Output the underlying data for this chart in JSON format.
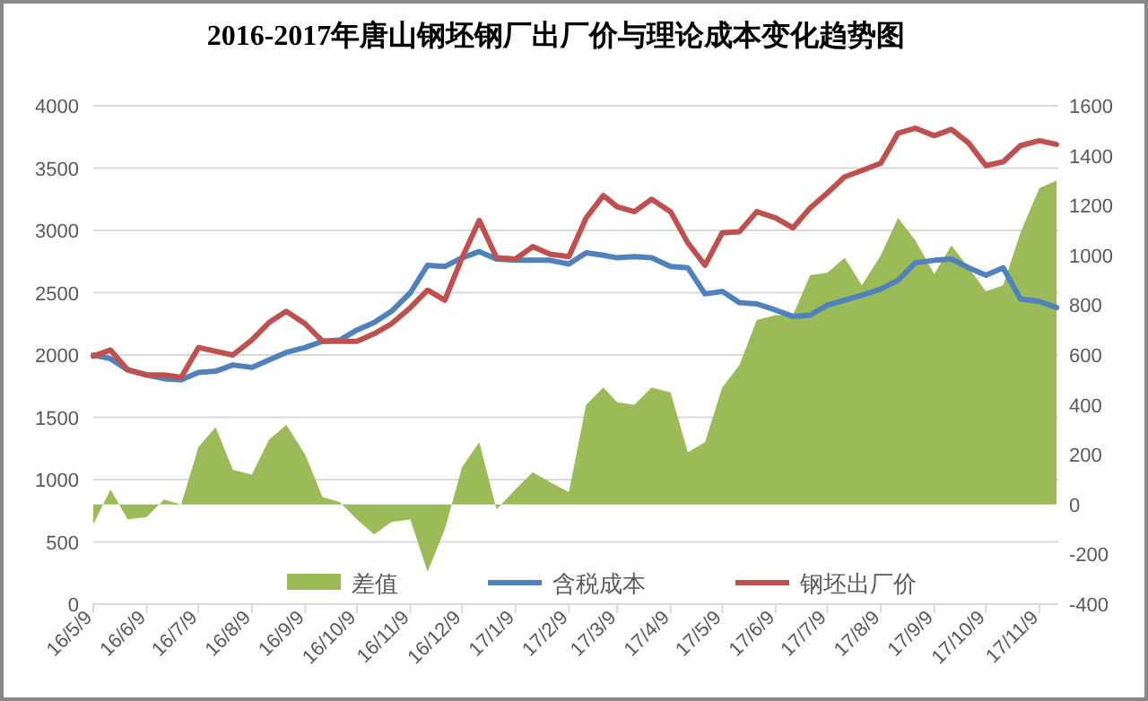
{
  "chart_data": {
    "type": "line",
    "title": "2016-2017年唐山钢坯钢厂出厂价与理论成本变化趋势图",
    "x": [
      "2016-05-09",
      "2016-05-19",
      "2016-05-29",
      "2016-06-09",
      "2016-06-19",
      "2016-06-29",
      "2016-07-09",
      "2016-07-19",
      "2016-07-29",
      "2016-08-09",
      "2016-08-19",
      "2016-08-29",
      "2016-09-09",
      "2016-09-19",
      "2016-09-29",
      "2016-10-09",
      "2016-10-19",
      "2016-10-29",
      "2016-11-09",
      "2016-11-19",
      "2016-11-29",
      "2016-12-09",
      "2016-12-19",
      "2016-12-29",
      "2017-01-09",
      "2017-01-19",
      "2017-01-29",
      "2017-02-09",
      "2017-02-19",
      "2017-03-01",
      "2017-03-09",
      "2017-03-19",
      "2017-03-29",
      "2017-04-09",
      "2017-04-19",
      "2017-04-29",
      "2017-05-09",
      "2017-05-19",
      "2017-05-29",
      "2017-06-09",
      "2017-06-19",
      "2017-06-29",
      "2017-07-09",
      "2017-07-19",
      "2017-07-29",
      "2017-08-09",
      "2017-08-19",
      "2017-08-29",
      "2017-09-09",
      "2017-09-19",
      "2017-09-29",
      "2017-10-09",
      "2017-10-19",
      "2017-10-29",
      "2017-11-09",
      "2017-11-19"
    ],
    "series": [
      {
        "name": "差值",
        "type": "area",
        "axis": "y2",
        "color": "#9bbb59",
        "values": [
          -80,
          60,
          -60,
          -50,
          20,
          0,
          230,
          310,
          140,
          120,
          260,
          320,
          200,
          30,
          10,
          -60,
          -120,
          -70,
          -60,
          -270,
          -100,
          150,
          250,
          -20,
          60,
          130,
          90,
          50,
          400,
          470,
          410,
          400,
          470,
          450,
          210,
          250,
          470,
          560,
          740,
          760,
          760,
          920,
          930,
          990,
          880,
          1000,
          1150,
          1060,
          925,
          1040,
          950,
          855,
          880,
          1090,
          1270,
          1300
        ]
      },
      {
        "name": "含税成本",
        "type": "line",
        "color": "#4f81bd",
        "values": [
          2000,
          1970,
          1880,
          1840,
          1810,
          1800,
          1860,
          1870,
          1920,
          1900,
          1960,
          2020,
          2060,
          2110,
          2120,
          2200,
          2260,
          2350,
          2500,
          2720,
          2710,
          2780,
          2830,
          2770,
          2760,
          2760,
          2760,
          2730,
          2820,
          2800,
          2780,
          2790,
          2780,
          2710,
          2700,
          2490,
          2510,
          2420,
          2410,
          2360,
          2310,
          2320,
          2400,
          2440,
          2480,
          2530,
          2600,
          2740,
          2760,
          2770,
          2700,
          2640,
          2700,
          2450,
          2430,
          2380
        ]
      },
      {
        "name": "钢坯出厂价",
        "type": "line",
        "color": "#c0504d",
        "values": [
          1990,
          2040,
          1880,
          1840,
          1840,
          1820,
          2060,
          2030,
          2000,
          2120,
          2260,
          2350,
          2250,
          2110,
          2110,
          2110,
          2170,
          2250,
          2380,
          2520,
          2440,
          2780,
          3080,
          2780,
          2770,
          2870,
          2810,
          2790,
          3100,
          3280,
          3190,
          3150,
          3250,
          3150,
          2900,
          2720,
          2980,
          2990,
          3150,
          3100,
          3020,
          3180,
          3300,
          3430,
          3480,
          3540,
          3780,
          3820,
          3760,
          3810,
          3700,
          3520,
          3550,
          3680,
          3720,
          3690
        ]
      }
    ],
    "xlim": [
      "2016-05-09",
      "2017-11-20"
    ],
    "xticks": [
      {
        "value": "2016-05-09",
        "label": "16/5/9"
      },
      {
        "value": "2016-06-09",
        "label": "16/6/9"
      },
      {
        "value": "2016-07-09",
        "label": "16/7/9"
      },
      {
        "value": "2016-08-09",
        "label": "16/8/9"
      },
      {
        "value": "2016-09-09",
        "label": "16/9/9"
      },
      {
        "value": "2016-10-09",
        "label": "16/10/9"
      },
      {
        "value": "2016-11-09",
        "label": "16/11/9"
      },
      {
        "value": "2016-12-09",
        "label": "16/12/9"
      },
      {
        "value": "2017-01-09",
        "label": "17/1/9"
      },
      {
        "value": "2017-02-09",
        "label": "17/2/9"
      },
      {
        "value": "2017-03-09",
        "label": "17/3/9"
      },
      {
        "value": "2017-04-09",
        "label": "17/4/9"
      },
      {
        "value": "2017-05-09",
        "label": "17/5/9"
      },
      {
        "value": "2017-06-09",
        "label": "17/6/9"
      },
      {
        "value": "2017-07-09",
        "label": "17/7/9"
      },
      {
        "value": "2017-08-09",
        "label": "17/8/9"
      },
      {
        "value": "2017-09-09",
        "label": "17/9/9"
      },
      {
        "value": "2017-10-09",
        "label": "17/10/9"
      },
      {
        "value": "2017-11-09",
        "label": "17/11/9"
      }
    ],
    "ylim": [
      0,
      4000
    ],
    "yticks": [
      0,
      500,
      1000,
      1500,
      2000,
      2500,
      3000,
      3500,
      4000
    ],
    "y2lim": [
      -400,
      1600
    ],
    "y2ticks": [
      -400,
      -200,
      0,
      200,
      400,
      600,
      800,
      1000,
      1200,
      1400,
      1600
    ],
    "grid": "y",
    "legend": "bottom"
  }
}
